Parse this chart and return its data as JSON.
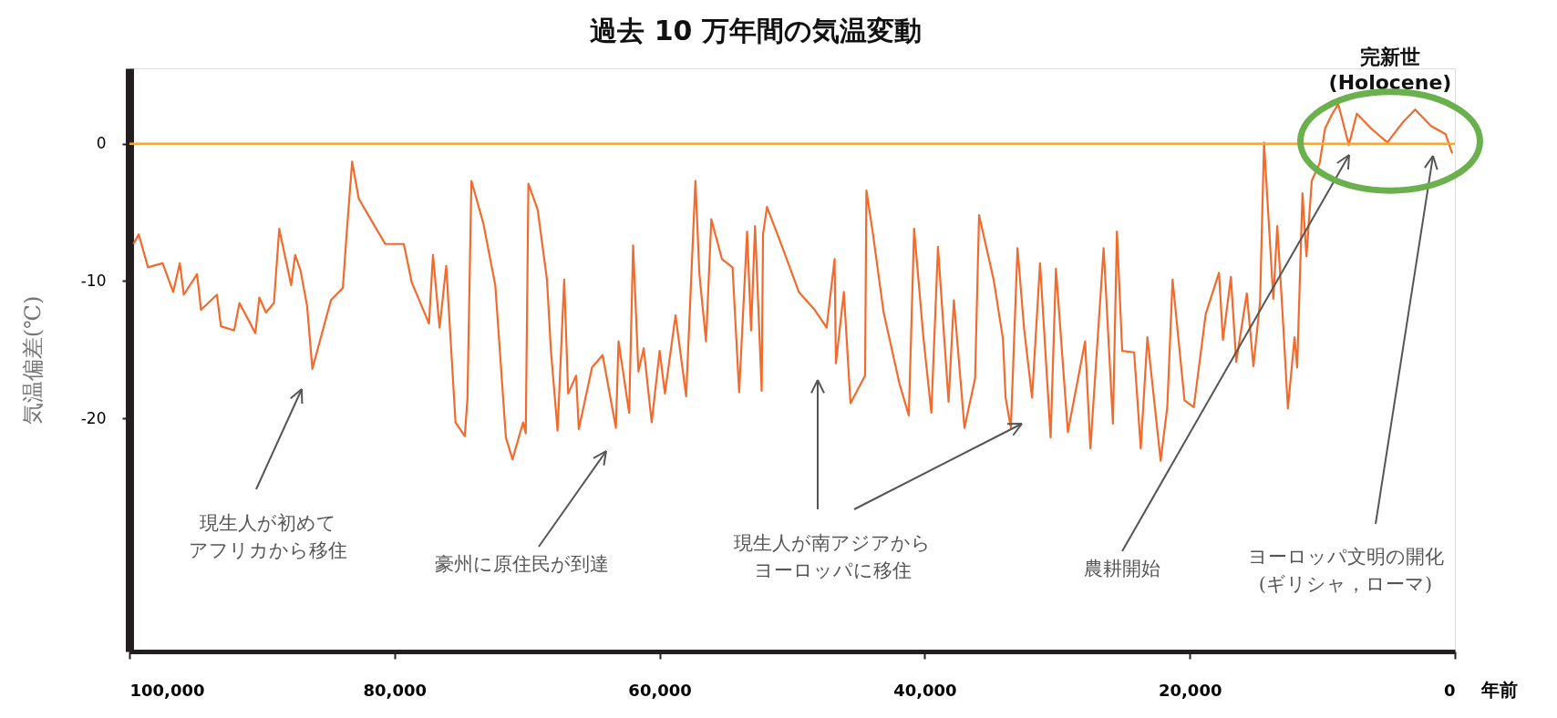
{
  "chart_data": {
    "type": "line",
    "title": "過去 10 万年間の気温変動",
    "xlabel": "年前",
    "ylabel": "気温偏差(℃)",
    "x": [
      99700,
      99300,
      98600,
      97500,
      96700,
      96200,
      95900,
      94900,
      94600,
      93400,
      93100,
      92100,
      91700,
      90500,
      90200,
      89700,
      89100,
      88700,
      87800,
      87500,
      87100,
      86600,
      86200,
      84800,
      83900,
      83600,
      83200,
      82700,
      81800,
      80700,
      79300,
      78700,
      77400,
      77100,
      76600,
      76100,
      75400,
      74700,
      74500,
      74200,
      73300,
      72400,
      71600,
      71100,
      70300,
      70100,
      69900,
      69200,
      68500,
      68200,
      67700,
      67200,
      66900,
      66300,
      66100,
      65100,
      64300,
      63300,
      63100,
      62300,
      62000,
      61600,
      61200,
      60600,
      60000,
      59600,
      58800,
      58000,
      57300,
      57000,
      56500,
      56100,
      55300,
      54500,
      54000,
      53400,
      53100,
      52800,
      52300,
      52200,
      51900,
      50600,
      49500,
      48300,
      47400,
      46800,
      46700,
      46100,
      45600,
      44500,
      44400,
      43900,
      43100,
      41900,
      41200,
      40800,
      40100,
      39500,
      39000,
      38200,
      37800,
      37000,
      36200,
      35900,
      34800,
      34100,
      33900,
      33500,
      33000,
      32500,
      31900,
      31300,
      30500,
      30100,
      29200,
      27900,
      27500,
      26500,
      25800,
      25500,
      25100,
      24200,
      23700,
      23200,
      22200,
      21700,
      21300,
      20400,
      19700,
      18800,
      17800,
      17500,
      16900,
      16500,
      15700,
      15200,
      14700,
      14400,
      13700,
      13400,
      13000,
      12600,
      12100,
      11900,
      11500,
      11200,
      10800,
      10200,
      9800,
      9300,
      8800,
      8000,
      7400,
      6300,
      5100,
      3900,
      3000,
      1800,
      700,
      200
    ],
    "series": [
      {
        "color": "#f26a2c",
        "values": [
          -7.3,
          -6.6,
          -9.0,
          -8.7,
          -10.8,
          -8.7,
          -11.0,
          -9.5,
          -12.1,
          -11.0,
          -13.3,
          -13.6,
          -11.6,
          -13.8,
          -11.2,
          -12.3,
          -11.6,
          -6.2,
          -10.3,
          -8.1,
          -9.2,
          -11.8,
          -16.4,
          -11.4,
          -10.5,
          -6.4,
          -1.3,
          -4.0,
          -5.5,
          -7.3,
          -7.3,
          -10.1,
          -13.1,
          -8.1,
          -13.4,
          -8.9,
          -20.3,
          -21.3,
          -18.6,
          -2.7,
          -5.8,
          -10.3,
          -21.4,
          -23.0,
          -20.3,
          -21.1,
          -2.9,
          -4.8,
          -9.9,
          -15.1,
          -20.9,
          -9.9,
          -18.2,
          -16.9,
          -20.8,
          -16.3,
          -15.4,
          -20.7,
          -14.4,
          -19.6,
          -7.4,
          -16.6,
          -14.9,
          -20.3,
          -15.1,
          -18.2,
          -12.5,
          -18.4,
          -2.7,
          -9.5,
          -14.4,
          -5.5,
          -8.4,
          -9.0,
          -18.1,
          -6.4,
          -13.6,
          -6.0,
          -18.0,
          -6.6,
          -4.6,
          -7.9,
          -10.8,
          -12.1,
          -13.4,
          -8.4,
          -16.0,
          -10.8,
          -18.9,
          -16.9,
          -3.4,
          -6.6,
          -12.3,
          -17.5,
          -19.8,
          -6.2,
          -14.1,
          -19.6,
          -7.5,
          -18.8,
          -11.4,
          -20.7,
          -17.1,
          -5.2,
          -9.9,
          -14.2,
          -18.5,
          -20.7,
          -7.6,
          -13.5,
          -18.5,
          -8.7,
          -21.4,
          -9.1,
          -21.0,
          -14.4,
          -22.2,
          -7.6,
          -20.4,
          -6.4,
          -15.1,
          -15.2,
          -22.2,
          -14.1,
          -23.1,
          -19.2,
          -9.9,
          -18.7,
          -19.2,
          -12.4,
          -9.4,
          -14.3,
          -9.7,
          -15.9,
          -10.9,
          -16.2,
          -11.5,
          0.1,
          -11.3,
          -6.0,
          -12.4,
          -19.3,
          -14.1,
          -16.3,
          -3.6,
          -8.2,
          -2.7,
          -1.4,
          1.1,
          2.1,
          2.9,
          -0.1,
          2.2,
          1.1,
          0.1,
          1.6,
          2.5,
          1.3,
          0.7,
          -0.7
        ]
      }
    ],
    "xlim": [
      100000,
      0
    ],
    "ylim": [
      -37,
      5.5
    ],
    "xticks": [
      {
        "value": 100000,
        "label": "100,000"
      },
      {
        "value": 80000,
        "label": "80,000"
      },
      {
        "value": 60000,
        "label": "60,000"
      },
      {
        "value": 40000,
        "label": "40,000"
      },
      {
        "value": 20000,
        "label": "20,000"
      },
      0
    ],
    "yticks": [
      0,
      -10,
      -20
    ],
    "ref_lines": [
      {
        "axis": "y",
        "value": 0,
        "color": "#f5a833"
      }
    ],
    "annotations": [
      "現生人が初めてアフリカから移住",
      "豪州に原住民が到達",
      "現生人が南アジアからヨーロッパに移住",
      "農耕開始",
      "ヨーロッパ文明の開化\n(ギリシャ，ローマ)",
      "完新世\n(Holocene)"
    ],
    "grid": false
  }
}
